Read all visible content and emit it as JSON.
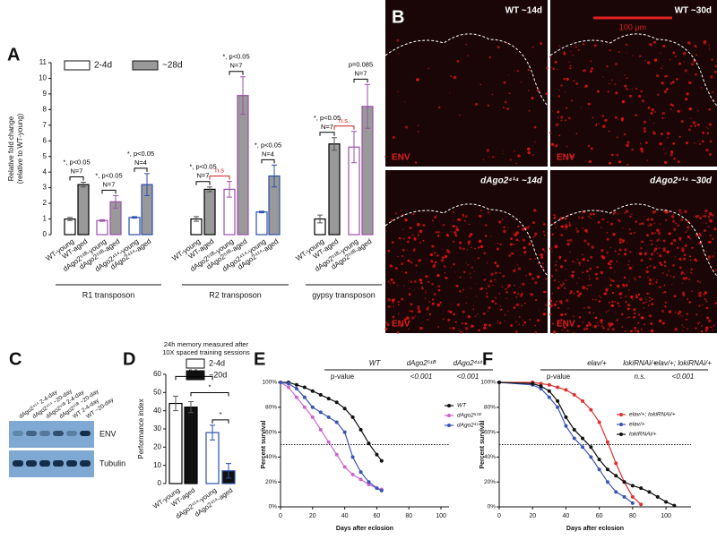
{
  "chart_data": [
    {
      "type": "bar",
      "label": "A",
      "ylabel": [
        "Relative fold change",
        "(relative to WT-young)"
      ],
      "ylim": [
        0,
        11
      ],
      "yticks": [
        0,
        1,
        2,
        3,
        4,
        5,
        6,
        7,
        8,
        9,
        10,
        11
      ],
      "legend": [
        {
          "name": "2-4d",
          "color": "#ffffff"
        },
        {
          "name": "~28d",
          "color": "#999999"
        }
      ],
      "groups": [
        {
          "name": "R1 transposon",
          "categories": [
            "WT-young",
            "WT-aged",
            "dAgo2⁵¹ᴮ-young",
            "dAgo2⁵¹ᴮ-aged",
            "dAgo2⁴¹⁴-young",
            "dAgo2⁴¹⁴-aged"
          ],
          "values": [
            1.0,
            3.2,
            0.9,
            2.1,
            1.1,
            3.2
          ],
          "errors": [
            0.1,
            0.15,
            0.05,
            0.4,
            0.05,
            0.7
          ],
          "fills": [
            "#ffffff",
            "#999999",
            "#ffffff",
            "#999999",
            "#ffffff",
            "#999999"
          ],
          "edge_colors": [
            "#000000",
            "#000000",
            "#9b4fa8",
            "#9b4fa8",
            "#2b4fa8",
            "#2b4fa8"
          ],
          "annotations": [
            {
              "text": [
                "*, p<0.05",
                "N=7"
              ],
              "color": "#000000"
            },
            {
              "text": [
                "*, p<0.05",
                "N=7"
              ],
              "color": "#000000"
            },
            {
              "text": [
                "*, p<0.05",
                "N=4"
              ],
              "color": "#000000"
            }
          ]
        },
        {
          "name": "R2 transposon",
          "categories": [
            "WT-young",
            "WT-aged",
            "dAgo2⁵¹ᴮ-young",
            "dAgo2⁵¹ᴮ-aged",
            "dAgo2⁴¹⁴-young",
            "dAgo2⁴¹⁴-aged"
          ],
          "values": [
            1.0,
            2.9,
            2.9,
            8.9,
            1.45,
            3.75
          ],
          "errors": [
            0.15,
            0.15,
            0.5,
            1.2,
            0.05,
            0.7
          ],
          "fills": [
            "#ffffff",
            "#999999",
            "#ffffff",
            "#999999",
            "#ffffff",
            "#999999"
          ],
          "edge_colors": [
            "#000000",
            "#000000",
            "#9b4fa8",
            "#9b4fa8",
            "#2b4fa8",
            "#2b4fa8"
          ],
          "annotations": [
            {
              "text": [
                "*, p<0.05",
                "N=7"
              ],
              "color": "#000000"
            },
            {
              "text": [
                "n.s"
              ],
              "color": "#d02020"
            },
            {
              "text": [
                "*, p<0.05",
                "N=7"
              ],
              "color": "#000000"
            },
            {
              "text": [
                "*, p<0.05",
                "N=4"
              ],
              "color": "#000000"
            }
          ]
        },
        {
          "name": "gypsy transposon",
          "categories": [
            "WT-young",
            "WT-aged",
            "dAgo2⁵¹ᴮ-young",
            "dAgo2⁵¹ᴮ-aged"
          ],
          "values": [
            1.0,
            5.8,
            5.6,
            8.2
          ],
          "errors": [
            0.25,
            0.4,
            1.0,
            1.4
          ],
          "fills": [
            "#ffffff",
            "#999999",
            "#ffffff",
            "#999999"
          ],
          "edge_colors": [
            "#000000",
            "#000000",
            "#9b4fa8",
            "#9b4fa8"
          ],
          "annotations": [
            {
              "text": [
                "*, p<0.05",
                "N=7"
              ],
              "color": "#000000"
            },
            {
              "text": [
                "n.s."
              ],
              "color": "#d02020"
            },
            {
              "text": [
                "p=0.085",
                "N=7"
              ],
              "color": "#000000"
            }
          ]
        }
      ]
    },
    {
      "type": "bar",
      "label": "D",
      "title": [
        "24h memory measured after",
        "10X spaced training sessions"
      ],
      "ylabel": [
        "Performance index"
      ],
      "ylim": [
        0,
        60
      ],
      "yticks": [
        0,
        10,
        20,
        30,
        40,
        50,
        60
      ],
      "legend": [
        {
          "name": "2-4d",
          "color": "#ffffff"
        },
        {
          "name": "~20d",
          "color": "#111111"
        }
      ],
      "groups": [
        {
          "categories": [
            "WT-young",
            "WT-aged",
            "dAgo2⁴¹⁴-young",
            "dAgo2⁴¹⁴-aged"
          ],
          "values": [
            44,
            42,
            28,
            7
          ],
          "errors": [
            4,
            3,
            4,
            4
          ],
          "fills": [
            "#ffffff",
            "#111111",
            "#ffffff",
            "#111111"
          ],
          "edge_colors": [
            "#000000",
            "#000000",
            "#2b4fa8",
            "#2b4fa8"
          ],
          "annotations": [
            {
              "text": [
                "n.s."
              ],
              "color": "#000000"
            },
            {
              "text": [
                "*"
              ],
              "color": "#000000"
            },
            {
              "text": [
                "*"
              ],
              "color": "#000000"
            }
          ]
        }
      ]
    },
    {
      "type": "line",
      "label": "E",
      "xlabel": "Days after eclosion",
      "ylabel": "Percent survival",
      "xlim": [
        0,
        105
      ],
      "xticks": [
        0,
        20,
        40,
        60,
        80,
        100
      ],
      "ylim": [
        0,
        100
      ],
      "yticks": [
        {
          "value": 0,
          "label": "0%"
        },
        {
          "value": 20,
          "label": "20%"
        },
        {
          "value": 40,
          "label": "40%"
        },
        {
          "value": 60,
          "label": "60%"
        },
        {
          "value": 80,
          "label": "80%"
        },
        {
          "value": 100,
          "label": "100%"
        }
      ],
      "reference_line": 50,
      "table": {
        "header": [
          null,
          "WT",
          "dAgo2⁵¹ᴮ",
          "dAgo2⁴¹⁴"
        ],
        "rows": [
          [
            "p-value",
            null,
            "<0.001",
            "<0.001"
          ]
        ]
      },
      "series": [
        {
          "name": "WT",
          "color": "#111111",
          "x": [
            0,
            5,
            10,
            15,
            20,
            25,
            30,
            35,
            40,
            45,
            50,
            55,
            60,
            63
          ],
          "values": [
            100,
            100,
            98,
            96,
            93,
            90,
            87,
            84,
            79,
            72,
            62,
            51,
            42,
            37
          ]
        },
        {
          "name": "dAgo2⁵¹ᴮ",
          "color": "#cc66cc",
          "x": [
            0,
            5,
            10,
            15,
            20,
            25,
            30,
            35,
            40,
            45,
            50,
            55,
            60,
            63
          ],
          "values": [
            100,
            96,
            88,
            80,
            72,
            62,
            52,
            42,
            32,
            26,
            22,
            18,
            15,
            14
          ]
        },
        {
          "name": "dAgo2⁴¹⁴",
          "color": "#3a55b0",
          "x": [
            0,
            5,
            10,
            15,
            20,
            25,
            30,
            35,
            40,
            45,
            50,
            55,
            60,
            63
          ],
          "values": [
            100,
            99,
            95,
            88,
            80,
            76,
            72,
            68,
            60,
            40,
            28,
            20,
            15,
            13
          ]
        }
      ]
    },
    {
      "type": "line",
      "label": "F",
      "xlabel": "Days after eclosion",
      "ylabel": "Percent survival",
      "xlim": [
        0,
        115
      ],
      "xticks": [
        0,
        20,
        40,
        60,
        80,
        100
      ],
      "ylim": [
        0,
        100
      ],
      "yticks": [
        {
          "value": 0,
          "label": "0%"
        },
        {
          "value": 20,
          "label": "20%"
        },
        {
          "value": 40,
          "label": "40%"
        },
        {
          "value": 60,
          "label": "60%"
        },
        {
          "value": 80,
          "label": "80%"
        },
        {
          "value": 100,
          "label": "100%"
        }
      ],
      "reference_line": 50,
      "table": {
        "header": [
          null,
          "elav/+",
          "lokiRNAi/+",
          "elav/+; lokiRNAi/+"
        ],
        "rows": [
          [
            "p-value",
            null,
            "n.s.",
            "<0.001"
          ]
        ]
      },
      "series": [
        {
          "name": "elav/+; lokiRNAi/+",
          "color": "#e03030",
          "x": [
            0,
            20,
            25,
            30,
            35,
            40,
            45,
            50,
            55,
            60,
            65,
            70,
            75,
            80,
            85
          ],
          "values": [
            100,
            100,
            99,
            98,
            96,
            94,
            90,
            85,
            78,
            68,
            52,
            35,
            20,
            8,
            2
          ]
        },
        {
          "name": "elav/+",
          "color": "#3a55b0",
          "x": [
            0,
            20,
            25,
            30,
            35,
            40,
            45,
            50,
            55,
            60,
            65,
            70,
            75,
            80
          ],
          "values": [
            100,
            98,
            95,
            88,
            80,
            65,
            55,
            48,
            40,
            30,
            20,
            12,
            8,
            3
          ]
        },
        {
          "name": "lokiRNAi/+",
          "color": "#111111",
          "x": [
            0,
            20,
            25,
            30,
            35,
            40,
            45,
            50,
            55,
            60,
            65,
            70,
            75,
            80,
            85,
            90,
            95,
            100,
            105
          ],
          "values": [
            100,
            99,
            97,
            93,
            85,
            72,
            62,
            55,
            48,
            38,
            30,
            25,
            20,
            17,
            15,
            12,
            8,
            4,
            1
          ]
        }
      ]
    }
  ],
  "images": {
    "label": "B",
    "scale_bar": "100 μm",
    "tiles": [
      {
        "title": "WT ~14d",
        "stain": "ENV"
      },
      {
        "title": "WT ~30d",
        "stain": "ENV"
      },
      {
        "title": "dAgo2⁴¹⁴ ~14d",
        "stain": "ENV"
      },
      {
        "title": "dAgo2⁴¹⁴ ~30d",
        "stain": "ENV"
      }
    ]
  },
  "blot": {
    "label": "C",
    "lanes": [
      "dAgo2⁴¹⁴ 2-4-day",
      "dAgo2⁴¹⁴ ~20-day",
      "dAgo2⁵¹ᴮ 2-4-day",
      "dAgo2⁵¹ᴮ ~20-day",
      "WT 2-4-day",
      "WT ~20-day"
    ],
    "bands": [
      "ENV",
      "Tubulin"
    ]
  }
}
